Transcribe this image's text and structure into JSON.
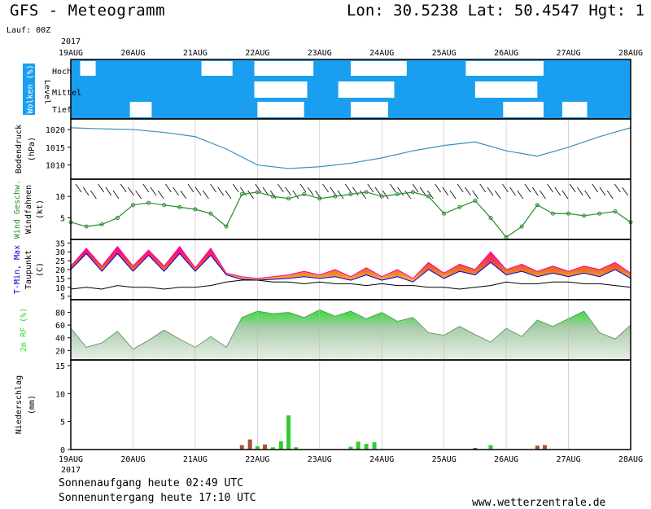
{
  "header": {
    "title": "GFS - Meteogramm",
    "coords": "Lon: 30.5238 Lat: 50.4547 Hgt: 1",
    "run": "Lauf: 00Z"
  },
  "footer": {
    "sunrise": "Sonnenaufgang heute 02:49 UTC",
    "sunset": "Sonnenuntergang heute 17:10 UTC",
    "source": "www.wetterzentrale.de"
  },
  "colors": {
    "clouds_bg": "#1a9ff0",
    "pressure": "#3a8fc0",
    "wind": "#2a8a2a",
    "tmax": "#ff00a0",
    "tmin": "#0000cc",
    "dew": "#000000",
    "rh": "#33dd33",
    "precip_conv": "#33cc33",
    "precip_strat": "#aa5533"
  },
  "chart_data": {
    "type": "meteogram",
    "year": "2017",
    "days": [
      "19AUG",
      "20AUG",
      "21AUG",
      "22AUG",
      "23AUG",
      "24AUG",
      "25AUG",
      "26AUG",
      "27AUG",
      "28AUG"
    ],
    "panels": [
      {
        "id": "clouds",
        "ylabel": "Wolken (%)",
        "levels_label": "Level",
        "levels": [
          "Hoch",
          "Mittel",
          "Tief"
        ],
        "clear_gaps": [
          {
            "level": "Hoch",
            "from": 19.15,
            "to": 19.4
          },
          {
            "level": "Hoch",
            "from": 21.1,
            "to": 21.6
          },
          {
            "level": "Hoch",
            "from": 21.95,
            "to": 22.9
          },
          {
            "level": "Hoch",
            "from": 23.5,
            "to": 24.4
          },
          {
            "level": "Hoch",
            "from": 25.35,
            "to": 26.6
          },
          {
            "level": "Mittel",
            "from": 21.95,
            "to": 22.8
          },
          {
            "level": "Mittel",
            "from": 23.3,
            "to": 24.2
          },
          {
            "level": "Mittel",
            "from": 25.5,
            "to": 26.5
          },
          {
            "level": "Tief",
            "from": 19.95,
            "to": 20.3
          },
          {
            "level": "Tief",
            "from": 22.0,
            "to": 22.75
          },
          {
            "level": "Tief",
            "from": 23.5,
            "to": 24.1
          },
          {
            "level": "Tief",
            "from": 25.95,
            "to": 26.6
          },
          {
            "level": "Tief",
            "from": 26.9,
            "to": 27.3
          }
        ]
      },
      {
        "id": "pressure",
        "ylabel": "Bodendruck",
        "unit": "(hPa)",
        "ylim": [
          1006,
          1023
        ],
        "ticks": [
          1010,
          1015,
          1020
        ],
        "x": [
          19.0,
          19.5,
          20.0,
          20.5,
          21.0,
          21.5,
          22.0,
          22.5,
          23.0,
          23.5,
          24.0,
          24.5,
          25.0,
          25.5,
          26.0,
          26.5,
          27.0,
          27.5,
          28.0
        ],
        "values": [
          1020.5,
          1020.2,
          1020.0,
          1019.2,
          1018.0,
          1014.5,
          1010.0,
          1009.0,
          1009.5,
          1010.5,
          1012.0,
          1014.0,
          1015.5,
          1016.5,
          1014.0,
          1012.5,
          1015.0,
          1018.0,
          1020.5
        ]
      },
      {
        "id": "wind",
        "ylabel": "Wind Geschw.",
        "ylabel2": "Windfahnen",
        "unit": "(kt)",
        "ylim": [
          0,
          14
        ],
        "ticks": [
          5,
          10
        ],
        "x": [
          19.0,
          19.25,
          19.5,
          19.75,
          20.0,
          20.25,
          20.5,
          20.75,
          21.0,
          21.25,
          21.5,
          21.75,
          22.0,
          22.25,
          22.5,
          22.75,
          23.0,
          23.25,
          23.5,
          23.75,
          24.0,
          24.25,
          24.5,
          24.75,
          25.0,
          25.25,
          25.5,
          25.75,
          26.0,
          26.25,
          26.5,
          26.75,
          27.0,
          27.25,
          27.5,
          27.75,
          28.0
        ],
        "values": [
          4,
          3,
          3.5,
          5,
          8,
          8.5,
          8,
          7.5,
          7,
          6,
          3,
          10.5,
          11,
          10,
          9.5,
          10.5,
          9.5,
          10,
          10.5,
          11,
          10,
          10.5,
          11,
          10,
          6,
          7.5,
          9,
          5,
          0.5,
          3,
          8,
          6,
          6,
          5.5,
          6,
          6.5,
          4
        ]
      },
      {
        "id": "temperature",
        "ylabel": "T-Min, Max",
        "ylabel2": "Taupunkt",
        "unit": "(C)",
        "ylim": [
          3,
          37
        ],
        "ticks": [
          5,
          10,
          15,
          20,
          25,
          30,
          35
        ],
        "x": [
          19.0,
          19.25,
          19.5,
          19.75,
          20.0,
          20.25,
          20.5,
          20.75,
          21.0,
          21.25,
          21.5,
          21.75,
          22.0,
          22.25,
          22.5,
          22.75,
          23.0,
          23.25,
          23.5,
          23.75,
          24.0,
          24.25,
          24.5,
          24.75,
          25.0,
          25.25,
          25.5,
          25.75,
          26.0,
          26.25,
          26.5,
          26.75,
          27.0,
          27.25,
          27.5,
          27.75,
          28.0
        ],
        "tmax": [
          22,
          32,
          22,
          33,
          22,
          31,
          22,
          33,
          21,
          32,
          18,
          16,
          15,
          16,
          17,
          19,
          17,
          20,
          16,
          21,
          16,
          20,
          15,
          24,
          18,
          23,
          20,
          30,
          20,
          23,
          19,
          22,
          19,
          22,
          20,
          24,
          18
        ],
        "tmin": [
          20,
          29,
          19,
          29,
          19,
          28,
          19,
          29,
          19,
          28,
          17,
          14.5,
          14,
          14.5,
          15,
          16,
          15,
          16,
          14,
          17,
          14,
          16,
          13,
          20,
          15,
          19,
          17,
          24,
          17,
          19,
          16,
          18,
          16,
          18,
          16,
          20,
          15
        ],
        "dewpoint": [
          9,
          10,
          9,
          11,
          10,
          10,
          9,
          10,
          10,
          11,
          13,
          14,
          14,
          13,
          13,
          12,
          13,
          12,
          12,
          11,
          12,
          11,
          11,
          10,
          10,
          9,
          10,
          11,
          13,
          12,
          12,
          13,
          13,
          12,
          12,
          11,
          10
        ]
      },
      {
        "id": "humidity",
        "ylabel": "2m RF (%)",
        "ylim": [
          5,
          100
        ],
        "ticks": [
          20,
          40,
          60,
          80
        ],
        "x": [
          19.0,
          19.25,
          19.5,
          19.75,
          20.0,
          20.25,
          20.5,
          20.75,
          21.0,
          21.25,
          21.5,
          21.75,
          22.0,
          22.25,
          22.5,
          22.75,
          23.0,
          23.25,
          23.5,
          23.75,
          24.0,
          24.25,
          24.5,
          24.75,
          25.0,
          25.25,
          25.5,
          25.75,
          26.0,
          26.25,
          26.5,
          26.75,
          27.0,
          27.25,
          27.5,
          27.75,
          28.0
        ],
        "values": [
          55,
          25,
          32,
          50,
          22,
          36,
          52,
          38,
          25,
          42,
          25,
          72,
          82,
          78,
          80,
          72,
          84,
          74,
          82,
          70,
          80,
          66,
          72,
          48,
          44,
          58,
          45,
          33,
          55,
          42,
          68,
          58,
          70,
          82,
          48,
          38,
          60
        ]
      },
      {
        "id": "precip",
        "ylabel": "Niederschlag",
        "unit": "(mm)",
        "ylim": [
          0,
          16
        ],
        "ticks": [
          0,
          5,
          10,
          15
        ],
        "bars": [
          {
            "x": 21.75,
            "value": 0.8,
            "type": "strat"
          },
          {
            "x": 21.88,
            "value": 1.8,
            "type": "strat"
          },
          {
            "x": 22.0,
            "value": 0.6,
            "type": "conv"
          },
          {
            "x": 22.12,
            "value": 0.9,
            "type": "strat"
          },
          {
            "x": 22.25,
            "value": 0.4,
            "type": "conv"
          },
          {
            "x": 22.38,
            "value": 1.5,
            "type": "conv"
          },
          {
            "x": 22.5,
            "value": 6.1,
            "type": "conv"
          },
          {
            "x": 22.62,
            "value": 0.4,
            "type": "conv"
          },
          {
            "x": 23.5,
            "value": 0.5,
            "type": "conv"
          },
          {
            "x": 23.62,
            "value": 1.4,
            "type": "conv"
          },
          {
            "x": 23.75,
            "value": 1.0,
            "type": "conv"
          },
          {
            "x": 23.88,
            "value": 1.3,
            "type": "conv"
          },
          {
            "x": 25.5,
            "value": 0.3,
            "type": "strat"
          },
          {
            "x": 25.75,
            "value": 0.8,
            "type": "conv"
          },
          {
            "x": 26.5,
            "value": 0.7,
            "type": "strat"
          },
          {
            "x": 26.62,
            "value": 0.8,
            "type": "strat"
          }
        ]
      }
    ]
  }
}
